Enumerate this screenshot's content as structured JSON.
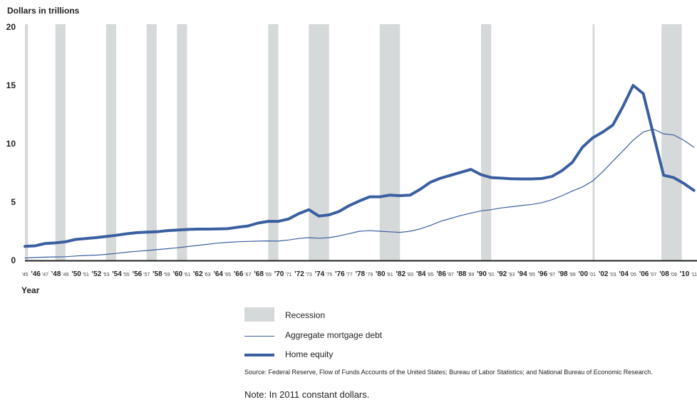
{
  "chart_data": {
    "type": "line",
    "ylabel": "Dollars in trillions",
    "xlabel": "Year",
    "ylim": [
      0,
      20
    ],
    "yticks": [
      0,
      5,
      10,
      15,
      20
    ],
    "xlim": [
      1945,
      2011
    ],
    "xtick_labels": [
      {
        "year": 1945,
        "label": "'45",
        "major": false
      },
      {
        "year": 1946,
        "label": "'46",
        "major": true
      },
      {
        "year": 1947,
        "label": "'47",
        "major": false
      },
      {
        "year": 1948,
        "label": "'48",
        "major": true
      },
      {
        "year": 1949,
        "label": "'49",
        "major": false
      },
      {
        "year": 1950,
        "label": "'50",
        "major": true
      },
      {
        "year": 1951,
        "label": "'51",
        "major": false
      },
      {
        "year": 1952,
        "label": "'52",
        "major": true
      },
      {
        "year": 1953,
        "label": "'53",
        "major": false
      },
      {
        "year": 1954,
        "label": "'54",
        "major": true
      },
      {
        "year": 1955,
        "label": "'55",
        "major": false
      },
      {
        "year": 1956,
        "label": "'56",
        "major": true
      },
      {
        "year": 1957,
        "label": "'57",
        "major": false
      },
      {
        "year": 1958,
        "label": "'58",
        "major": true
      },
      {
        "year": 1959,
        "label": "'59",
        "major": false
      },
      {
        "year": 1960,
        "label": "'60",
        "major": true
      },
      {
        "year": 1961,
        "label": "'61",
        "major": false
      },
      {
        "year": 1962,
        "label": "'62",
        "major": true
      },
      {
        "year": 1963,
        "label": "'63",
        "major": false
      },
      {
        "year": 1964,
        "label": "'64",
        "major": true
      },
      {
        "year": 1965,
        "label": "'65",
        "major": false
      },
      {
        "year": 1966,
        "label": "'66",
        "major": true
      },
      {
        "year": 1967,
        "label": "'67",
        "major": false
      },
      {
        "year": 1968,
        "label": "'68",
        "major": true
      },
      {
        "year": 1969,
        "label": "'69",
        "major": false
      },
      {
        "year": 1970,
        "label": "'70",
        "major": true
      },
      {
        "year": 1971,
        "label": "'71",
        "major": false
      },
      {
        "year": 1972,
        "label": "'72",
        "major": true
      },
      {
        "year": 1973,
        "label": "'73",
        "major": false
      },
      {
        "year": 1974,
        "label": "'74",
        "major": true
      },
      {
        "year": 1975,
        "label": "'75",
        "major": false
      },
      {
        "year": 1976,
        "label": "'76",
        "major": true
      },
      {
        "year": 1977,
        "label": "'77",
        "major": false
      },
      {
        "year": 1978,
        "label": "'78",
        "major": true
      },
      {
        "year": 1979,
        "label": "'79",
        "major": false
      },
      {
        "year": 1980,
        "label": "'80",
        "major": true
      },
      {
        "year": 1981,
        "label": "'81",
        "major": false
      },
      {
        "year": 1982,
        "label": "'82",
        "major": true
      },
      {
        "year": 1983,
        "label": "'83",
        "major": false
      },
      {
        "year": 1984,
        "label": "'84",
        "major": true
      },
      {
        "year": 1985,
        "label": "'85",
        "major": false
      },
      {
        "year": 1986,
        "label": "'86",
        "major": true
      },
      {
        "year": 1987,
        "label": "'87",
        "major": false
      },
      {
        "year": 1988,
        "label": "'88",
        "major": true
      },
      {
        "year": 1989,
        "label": "'89",
        "major": false
      },
      {
        "year": 1990,
        "label": "'90",
        "major": true
      },
      {
        "year": 1991,
        "label": "'91",
        "major": false
      },
      {
        "year": 1992,
        "label": "'92",
        "major": true
      },
      {
        "year": 1993,
        "label": "'93",
        "major": false
      },
      {
        "year": 1994,
        "label": "'94",
        "major": true
      },
      {
        "year": 1995,
        "label": "'95",
        "major": false
      },
      {
        "year": 1996,
        "label": "'96",
        "major": true
      },
      {
        "year": 1997,
        "label": "'97",
        "major": false
      },
      {
        "year": 1998,
        "label": "'98",
        "major": true
      },
      {
        "year": 1999,
        "label": "'99",
        "major": false
      },
      {
        "year": 2000,
        "label": "'00",
        "major": true
      },
      {
        "year": 2001,
        "label": "'01",
        "major": false
      },
      {
        "year": 2002,
        "label": "'02",
        "major": true
      },
      {
        "year": 2003,
        "label": "'03",
        "major": false
      },
      {
        "year": 2004,
        "label": "'04",
        "major": true
      },
      {
        "year": 2005,
        "label": "'05",
        "major": false
      },
      {
        "year": 2006,
        "label": "'06",
        "major": true
      },
      {
        "year": 2007,
        "label": "'07",
        "major": false
      },
      {
        "year": 2008,
        "label": "'08",
        "major": true
      },
      {
        "year": 2009,
        "label": "'09",
        "major": false
      },
      {
        "year": 2010,
        "label": "'10",
        "major": true
      },
      {
        "year": 2011,
        "label": "'11",
        "major": false
      }
    ],
    "recessions": [
      [
        1945,
        1945.3
      ],
      [
        1948,
        1949
      ],
      [
        1953,
        1954
      ],
      [
        1957,
        1958
      ],
      [
        1960,
        1961
      ],
      [
        1969,
        1970
      ],
      [
        1973,
        1975
      ],
      [
        1980,
        1982
      ],
      [
        1990,
        1991
      ],
      [
        2001,
        2001.2
      ],
      [
        2007.8,
        2009.8
      ]
    ],
    "series": [
      {
        "name": "Aggregate mortgage debt",
        "color": "#3a5fa0",
        "x": [
          1945,
          1946,
          1947,
          1948,
          1949,
          1950,
          1951,
          1952,
          1953,
          1954,
          1955,
          1956,
          1957,
          1958,
          1959,
          1960,
          1961,
          1962,
          1963,
          1964,
          1965,
          1966,
          1967,
          1968,
          1969,
          1970,
          1971,
          1972,
          1973,
          1974,
          1975,
          1976,
          1977,
          1978,
          1979,
          1980,
          1981,
          1982,
          1983,
          1984,
          1985,
          1986,
          1987,
          1988,
          1989,
          1990,
          1991,
          1992,
          1993,
          1994,
          1995,
          1996,
          1997,
          1998,
          1999,
          2000,
          2001,
          2002,
          2003,
          2004,
          2005,
          2006,
          2007,
          2008,
          2009,
          2010,
          2011
        ],
        "y": [
          0.2,
          0.25,
          0.28,
          0.3,
          0.32,
          0.38,
          0.42,
          0.45,
          0.52,
          0.6,
          0.7,
          0.78,
          0.85,
          0.92,
          1.0,
          1.08,
          1.18,
          1.28,
          1.38,
          1.48,
          1.55,
          1.6,
          1.63,
          1.65,
          1.67,
          1.65,
          1.75,
          1.88,
          1.95,
          1.9,
          1.95,
          2.1,
          2.3,
          2.5,
          2.55,
          2.5,
          2.45,
          2.4,
          2.5,
          2.7,
          3.0,
          3.35,
          3.6,
          3.85,
          4.05,
          4.25,
          4.35,
          4.5,
          4.6,
          4.7,
          4.8,
          4.95,
          5.2,
          5.55,
          5.95,
          6.3,
          6.8,
          7.6,
          8.5,
          9.4,
          10.3,
          11.0,
          11.25,
          10.85,
          10.75,
          10.3,
          9.7
        ]
      },
      {
        "name": "Home equity",
        "color": "#3a5fa0",
        "x": [
          1945,
          1946,
          1947,
          1948,
          1949,
          1950,
          1951,
          1952,
          1953,
          1954,
          1955,
          1956,
          1957,
          1958,
          1959,
          1960,
          1961,
          1962,
          1963,
          1964,
          1965,
          1966,
          1967,
          1968,
          1969,
          1970,
          1971,
          1972,
          1973,
          1974,
          1975,
          1976,
          1977,
          1978,
          1979,
          1980,
          1981,
          1982,
          1983,
          1984,
          1985,
          1986,
          1987,
          1988,
          1989,
          1990,
          1991,
          1992,
          1993,
          1994,
          1995,
          1996,
          1997,
          1998,
          1999,
          2000,
          2001,
          2002,
          2003,
          2004,
          2005,
          2006,
          2007,
          2008,
          2009,
          2010,
          2011
        ],
        "y": [
          1.2,
          1.25,
          1.45,
          1.5,
          1.6,
          1.8,
          1.88,
          1.95,
          2.05,
          2.15,
          2.28,
          2.38,
          2.42,
          2.45,
          2.55,
          2.6,
          2.65,
          2.68,
          2.68,
          2.7,
          2.72,
          2.85,
          2.95,
          3.2,
          3.35,
          3.35,
          3.55,
          4.0,
          4.35,
          3.8,
          3.9,
          4.2,
          4.7,
          5.1,
          5.45,
          5.45,
          5.6,
          5.55,
          5.6,
          6.1,
          6.7,
          7.05,
          7.3,
          7.55,
          7.8,
          7.35,
          7.1,
          7.05,
          7.0,
          6.98,
          6.98,
          7.02,
          7.2,
          7.7,
          8.4,
          9.7,
          10.5,
          11.0,
          11.6,
          13.2,
          15.0,
          14.3,
          10.8,
          7.3,
          7.1,
          6.6,
          6.0
        ]
      }
    ]
  },
  "legend": {
    "recession_label": "Recession",
    "mortgage_label": "Aggregate mortgage debt",
    "equity_label": "Home equity",
    "recession_color": "#d6d9d9",
    "line_color": "#3a5fa0"
  },
  "source_text": "Source: Federal Reserve, Flow of Funds Accounts of the United States; Bureau of Labor Statistics; and National Bureau of Economic Research.",
  "note_text": "Note:  In 2011 constant dollars."
}
